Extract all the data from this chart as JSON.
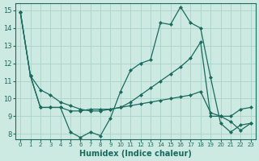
{
  "xlabel": "Humidex (Indice chaleur)",
  "background_color": "#cce9e2",
  "grid_color": "#b0d5cc",
  "line_color": "#1a6b5e",
  "xlim": [
    -0.5,
    23.5
  ],
  "ylim": [
    7.7,
    15.4
  ],
  "xticks": [
    0,
    1,
    2,
    3,
    4,
    5,
    6,
    7,
    8,
    9,
    10,
    11,
    12,
    13,
    14,
    15,
    16,
    17,
    18,
    19,
    20,
    21,
    22,
    23
  ],
  "yticks": [
    8,
    9,
    10,
    11,
    12,
    13,
    14,
    15
  ],
  "line1_y": [
    14.9,
    11.3,
    9.5,
    9.5,
    9.5,
    8.1,
    7.8,
    8.1,
    7.9,
    8.9,
    10.4,
    11.6,
    12.0,
    12.2,
    14.3,
    14.2,
    15.2,
    14.3,
    14.0,
    11.2,
    8.6,
    8.1,
    8.5,
    8.6
  ],
  "line2_y": [
    14.9,
    11.3,
    10.5,
    10.2,
    9.8,
    9.6,
    9.4,
    9.3,
    9.3,
    9.4,
    9.5,
    9.8,
    10.2,
    10.6,
    11.0,
    11.4,
    11.8,
    12.3,
    13.2,
    9.0,
    9.0,
    8.7,
    8.2,
    8.6
  ],
  "line3_y": [
    14.9,
    11.3,
    9.5,
    9.5,
    9.5,
    9.3,
    9.3,
    9.4,
    9.4,
    9.4,
    9.5,
    9.6,
    9.7,
    9.8,
    9.9,
    10.0,
    10.1,
    10.2,
    10.4,
    9.2,
    9.0,
    9.0,
    9.4,
    9.5
  ]
}
